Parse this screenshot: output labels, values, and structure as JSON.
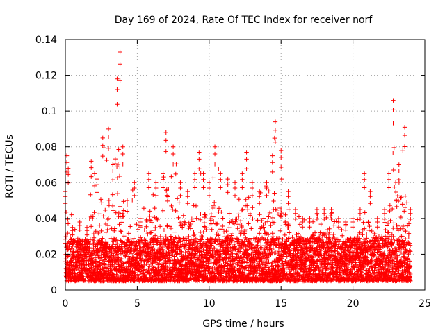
{
  "chart_data": {
    "type": "scatter",
    "title": "Day 169 of 2024, Rate Of TEC Index for receiver norf",
    "xlabel": "GPS time / hours",
    "ylabel": "ROTI / TECUs",
    "xlim": [
      0,
      25
    ],
    "ylim": [
      0,
      0.14
    ],
    "xticks": [
      0,
      5,
      10,
      15,
      20,
      25
    ],
    "xtick_labels": [
      "0",
      "5",
      "10",
      "15",
      "20",
      "25"
    ],
    "yticks": [
      0,
      0.02,
      0.04,
      0.06,
      0.08,
      0.1,
      0.12,
      0.14
    ],
    "ytick_labels": [
      "0",
      "0.02",
      "0.04",
      "0.06",
      "0.08",
      "0.1",
      "0.12",
      "0.14"
    ],
    "grid": true,
    "marker": "+",
    "color": "#ff0000",
    "data_x_range": [
      0,
      24
    ],
    "envelope": [
      [
        0.0,
        0.055
      ],
      [
        0.1,
        0.075
      ],
      [
        0.2,
        0.068
      ],
      [
        0.5,
        0.035
      ],
      [
        1.0,
        0.038
      ],
      [
        1.5,
        0.035
      ],
      [
        1.8,
        0.072
      ],
      [
        2.2,
        0.062
      ],
      [
        2.6,
        0.085
      ],
      [
        3.0,
        0.09
      ],
      [
        3.3,
        0.07
      ],
      [
        3.6,
        0.118
      ],
      [
        3.8,
        0.133
      ],
      [
        4.0,
        0.08
      ],
      [
        4.3,
        0.05
      ],
      [
        4.8,
        0.06
      ],
      [
        5.2,
        0.04
      ],
      [
        5.8,
        0.065
      ],
      [
        6.3,
        0.06
      ],
      [
        6.8,
        0.065
      ],
      [
        7.0,
        0.088
      ],
      [
        7.5,
        0.08
      ],
      [
        8.0,
        0.06
      ],
      [
        8.5,
        0.055
      ],
      [
        9.0,
        0.065
      ],
      [
        9.3,
        0.077
      ],
      [
        9.6,
        0.065
      ],
      [
        10.0,
        0.06
      ],
      [
        10.4,
        0.08
      ],
      [
        10.8,
        0.065
      ],
      [
        11.3,
        0.062
      ],
      [
        11.8,
        0.06
      ],
      [
        12.3,
        0.065
      ],
      [
        12.6,
        0.077
      ],
      [
        13.0,
        0.06
      ],
      [
        13.5,
        0.055
      ],
      [
        14.0,
        0.06
      ],
      [
        14.4,
        0.075
      ],
      [
        14.6,
        0.094
      ],
      [
        15.0,
        0.078
      ],
      [
        15.5,
        0.055
      ],
      [
        16.0,
        0.045
      ],
      [
        16.5,
        0.04
      ],
      [
        17.0,
        0.04
      ],
      [
        17.5,
        0.045
      ],
      [
        18.0,
        0.045
      ],
      [
        18.5,
        0.045
      ],
      [
        19.0,
        0.04
      ],
      [
        19.5,
        0.038
      ],
      [
        20.0,
        0.04
      ],
      [
        20.5,
        0.045
      ],
      [
        20.8,
        0.065
      ],
      [
        21.2,
        0.055
      ],
      [
        21.7,
        0.04
      ],
      [
        22.2,
        0.045
      ],
      [
        22.5,
        0.065
      ],
      [
        22.8,
        0.106
      ],
      [
        23.2,
        0.07
      ],
      [
        23.6,
        0.091
      ],
      [
        24.0,
        0.045
      ]
    ]
  }
}
